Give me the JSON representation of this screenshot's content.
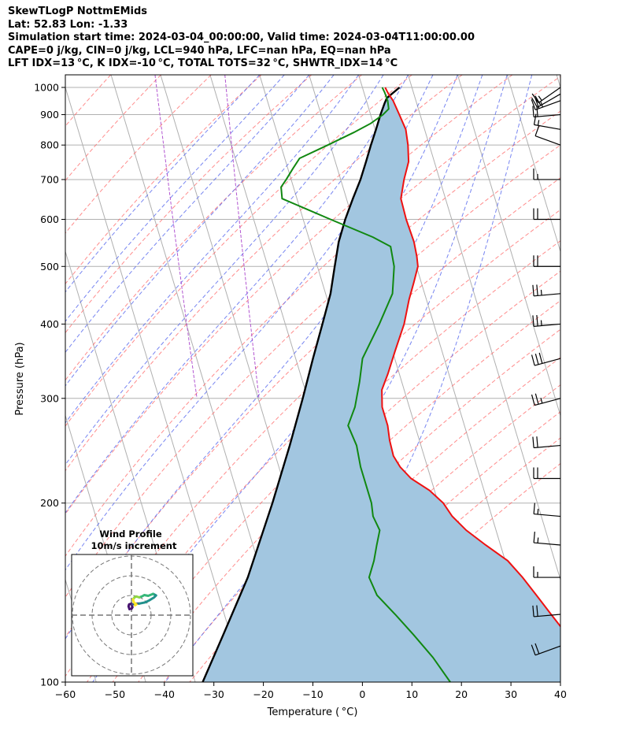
{
  "header": {
    "line1": "SkewTLogP NottmEMids",
    "line2": "Lat: 52.83   Lon: -1.33",
    "line3": "Simulation start time: 2024-03-04_00:00:00, Valid time: 2024-03-04T11:00:00.00",
    "line4": "CAPE=0 j/kg, CIN=0 j/kg, LCL=940 hPa, LFC=nan hPa, EQ=nan hPa",
    "line5": "LFT IDX=13 °C, K IDX=-10 °C, TOTAL TOTS=32 °C, SHWTR_IDX=14 °C"
  },
  "chart_data": {
    "type": "line",
    "subtype": "skew-T log-P diagram",
    "xlabel": "Temperature ( °C)",
    "ylabel": "Pressure (hPa)",
    "x_ticks": [
      -60,
      -50,
      -40,
      -30,
      -20,
      -10,
      0,
      10,
      20,
      30,
      40
    ],
    "y_ticks": [
      100,
      200,
      300,
      400,
      500,
      600,
      700,
      800,
      900,
      1000
    ],
    "xlim": [
      -60,
      40
    ],
    "ylim": [
      1050,
      100
    ],
    "y_scale": "log",
    "grid": true,
    "colors": {
      "temperature": "#ee1111",
      "dewpoint": "#118811",
      "parcel": "#000000",
      "cape_shading": "#a2c6e0",
      "dry_adiabats": "#ff6666",
      "moist_adiabats": "#5566ee",
      "mixing_ratio": "#aa44cc",
      "isotherms": "#b0b0b0"
    },
    "series": [
      {
        "role": "temperature",
        "points": [
          [
            1000,
            4.6
          ],
          [
            980,
            4.8
          ],
          [
            950,
            5.4
          ],
          [
            900,
            5.8
          ],
          [
            850,
            6.2
          ],
          [
            800,
            5.7
          ],
          [
            750,
            4.8
          ],
          [
            700,
            2.8
          ],
          [
            650,
            1.0
          ],
          [
            600,
            0.8
          ],
          [
            550,
            1.0
          ],
          [
            520,
            0.7
          ],
          [
            500,
            0.3
          ],
          [
            470,
            -1.5
          ],
          [
            440,
            -3.5
          ],
          [
            400,
            -6.0
          ],
          [
            360,
            -9.5
          ],
          [
            330,
            -12.3
          ],
          [
            310,
            -14.5
          ],
          [
            290,
            -15.5
          ],
          [
            270,
            -15.5
          ],
          [
            255,
            -16.0
          ],
          [
            240,
            -16.2
          ],
          [
            230,
            -15.5
          ],
          [
            220,
            -14.0
          ],
          [
            210,
            -11.0
          ],
          [
            200,
            -9.0
          ],
          [
            190,
            -8.0
          ],
          [
            180,
            -6.0
          ],
          [
            170,
            -3.0
          ],
          [
            160,
            0.5
          ],
          [
            150,
            2.5
          ],
          [
            140,
            4.2
          ],
          [
            130,
            6.0
          ],
          [
            120,
            8.0
          ],
          [
            110,
            9.8
          ],
          [
            100,
            11.5
          ]
        ]
      },
      {
        "role": "dewpoint",
        "points": [
          [
            1000,
            4.0
          ],
          [
            980,
            4.2
          ],
          [
            950,
            4.3
          ],
          [
            920,
            4.0
          ],
          [
            900,
            2.5
          ],
          [
            870,
            -0.5
          ],
          [
            840,
            -4.5
          ],
          [
            800,
            -10.5
          ],
          [
            760,
            -17.0
          ],
          [
            730,
            -19.0
          ],
          [
            700,
            -21.0
          ],
          [
            680,
            -22.5
          ],
          [
            650,
            -23.0
          ],
          [
            600,
            -14.5
          ],
          [
            560,
            -7.0
          ],
          [
            540,
            -4.0
          ],
          [
            500,
            -4.5
          ],
          [
            450,
            -6.5
          ],
          [
            400,
            -11.0
          ],
          [
            350,
            -16.5
          ],
          [
            320,
            -18.5
          ],
          [
            290,
            -21.0
          ],
          [
            270,
            -23.5
          ],
          [
            250,
            -23.0
          ],
          [
            230,
            -23.5
          ],
          [
            210,
            -23.5
          ],
          [
            200,
            -23.5
          ],
          [
            190,
            -24.0
          ],
          [
            180,
            -23.5
          ],
          [
            170,
            -25.0
          ],
          [
            160,
            -26.5
          ],
          [
            150,
            -28.5
          ],
          [
            140,
            -28.0
          ],
          [
            130,
            -25.5
          ],
          [
            120,
            -23.0
          ],
          [
            110,
            -20.5
          ],
          [
            100,
            -18.5
          ]
        ]
      },
      {
        "role": "parcel profile",
        "points": [
          [
            1000,
            7.5
          ],
          [
            960,
            4.3
          ],
          [
            940,
            3.5
          ],
          [
            900,
            2.0
          ],
          [
            850,
            0.2
          ],
          [
            800,
            -1.8
          ],
          [
            750,
            -3.8
          ],
          [
            700,
            -6.0
          ],
          [
            650,
            -8.7
          ],
          [
            600,
            -11.5
          ],
          [
            550,
            -14.2
          ],
          [
            500,
            -16.5
          ],
          [
            450,
            -19.0
          ],
          [
            400,
            -22.5
          ],
          [
            350,
            -26.5
          ],
          [
            300,
            -31.0
          ],
          [
            250,
            -36.5
          ],
          [
            200,
            -43.5
          ],
          [
            150,
            -53.0
          ],
          [
            120,
            -61.5
          ],
          [
            100,
            -68.5
          ]
        ]
      }
    ],
    "wind_barbs": [
      {
        "p": 1000,
        "speed_kt": 15,
        "dir_deg": 235
      },
      {
        "p": 975,
        "speed_kt": 20,
        "dir_deg": 240
      },
      {
        "p": 950,
        "speed_kt": 25,
        "dir_deg": 250
      },
      {
        "p": 900,
        "speed_kt": 20,
        "dir_deg": 265
      },
      {
        "p": 850,
        "speed_kt": 15,
        "dir_deg": 280
      },
      {
        "p": 800,
        "speed_kt": 10,
        "dir_deg": 290
      },
      {
        "p": 700,
        "speed_kt": 15,
        "dir_deg": 270
      },
      {
        "p": 600,
        "speed_kt": 20,
        "dir_deg": 270
      },
      {
        "p": 500,
        "speed_kt": 20,
        "dir_deg": 270
      },
      {
        "p": 450,
        "speed_kt": 25,
        "dir_deg": 265
      },
      {
        "p": 400,
        "speed_kt": 25,
        "dir_deg": 265
      },
      {
        "p": 350,
        "speed_kt": 30,
        "dir_deg": 255
      },
      {
        "p": 300,
        "speed_kt": 25,
        "dir_deg": 255
      },
      {
        "p": 250,
        "speed_kt": 20,
        "dir_deg": 265
      },
      {
        "p": 220,
        "speed_kt": 20,
        "dir_deg": 270
      },
      {
        "p": 190,
        "speed_kt": 15,
        "dir_deg": 275
      },
      {
        "p": 170,
        "speed_kt": 15,
        "dir_deg": 275
      },
      {
        "p": 150,
        "speed_kt": 15,
        "dir_deg": 270
      },
      {
        "p": 130,
        "speed_kt": 20,
        "dir_deg": 265
      },
      {
        "p": 115,
        "speed_kt": 20,
        "dir_deg": 250
      }
    ],
    "hodograph": {
      "title": "Wind Profile",
      "subtitle": "10m/s increment",
      "ring_spacing_ms": 10,
      "segments": [
        {
          "color": "#44106e",
          "points": [
            [
              -1.0,
              3.0
            ],
            [
              -1.5,
              4.5
            ],
            [
              -1.2,
              5.5
            ],
            [
              0.0,
              5.8
            ],
            [
              0.5,
              4.0
            ],
            [
              0.0,
              3.2
            ]
          ]
        },
        {
          "color": "#3b528b",
          "points": [
            [
              0.5,
              5.5
            ],
            [
              2.0,
              5.8
            ],
            [
              4.0,
              5.9
            ]
          ]
        },
        {
          "color": "#21918c",
          "points": [
            [
              4.0,
              5.9
            ],
            [
              7.0,
              6.5
            ],
            [
              9.0,
              7.5
            ],
            [
              11.5,
              9.0
            ],
            [
              12.5,
              10.0
            ],
            [
              11.0,
              10.8
            ]
          ]
        },
        {
          "color": "#35b779",
          "points": [
            [
              11.0,
              10.8
            ],
            [
              8.5,
              9.8
            ],
            [
              6.5,
              10.2
            ],
            [
              5.5,
              9.6
            ],
            [
              4.0,
              9.0
            ]
          ]
        },
        {
          "color": "#8fd744",
          "points": [
            [
              4.0,
              9.0
            ],
            [
              2.5,
              9.5
            ],
            [
              1.5,
              9.0
            ],
            [
              0.8,
              8.0
            ]
          ]
        },
        {
          "color": "#fde725",
          "points": [
            [
              0.8,
              8.0
            ],
            [
              1.2,
              6.5
            ],
            [
              2.5,
              5.5
            ],
            [
              1.8,
              5.0
            ]
          ]
        }
      ]
    }
  }
}
